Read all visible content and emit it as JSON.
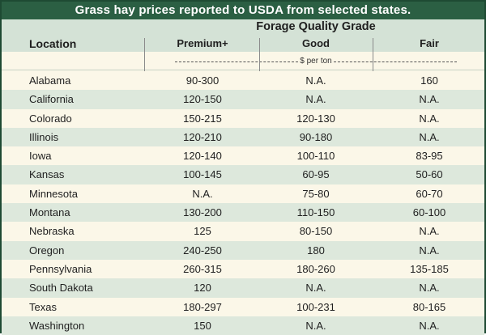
{
  "title": "Grass hay prices reported to USDA from selected states.",
  "header": {
    "location": "Location",
    "grade_group": "Forage Quality Grade",
    "columns": [
      "Premium+",
      "Good",
      "Fair"
    ],
    "units": "$ per ton"
  },
  "rows": [
    {
      "location": "Alabama",
      "premium": "90-300",
      "good": "N.A.",
      "fair": "160"
    },
    {
      "location": "California",
      "premium": "120-150",
      "good": "N.A.",
      "fair": "N.A."
    },
    {
      "location": "Colorado",
      "premium": "150-215",
      "good": "120-130",
      "fair": "N.A."
    },
    {
      "location": "Illinois",
      "premium": "120-210",
      "good": "90-180",
      "fair": "N.A."
    },
    {
      "location": "Iowa",
      "premium": "120-140",
      "good": "100-110",
      "fair": "83-95"
    },
    {
      "location": "Kansas",
      "premium": "100-145",
      "good": "60-95",
      "fair": "50-60"
    },
    {
      "location": "Minnesota",
      "premium": "N.A.",
      "good": "75-80",
      "fair": "60-70"
    },
    {
      "location": "Montana",
      "premium": "130-200",
      "good": "110-150",
      "fair": "60-100"
    },
    {
      "location": "Nebraska",
      "premium": "125",
      "good": "80-150",
      "fair": "N.A."
    },
    {
      "location": "Oregon",
      "premium": "240-250",
      "good": "180",
      "fair": "N.A."
    },
    {
      "location": "Pennsylvania",
      "premium": "260-315",
      "good": "180-260",
      "fair": "135-185"
    },
    {
      "location": "South Dakota",
      "premium": "120",
      "good": "N.A.",
      "fair": "N.A."
    },
    {
      "location": "Texas",
      "premium": "180-297",
      "good": "100-231",
      "fair": "80-165"
    },
    {
      "location": "Washington",
      "premium": "150",
      "good": "N.A.",
      "fair": "N.A."
    }
  ]
}
